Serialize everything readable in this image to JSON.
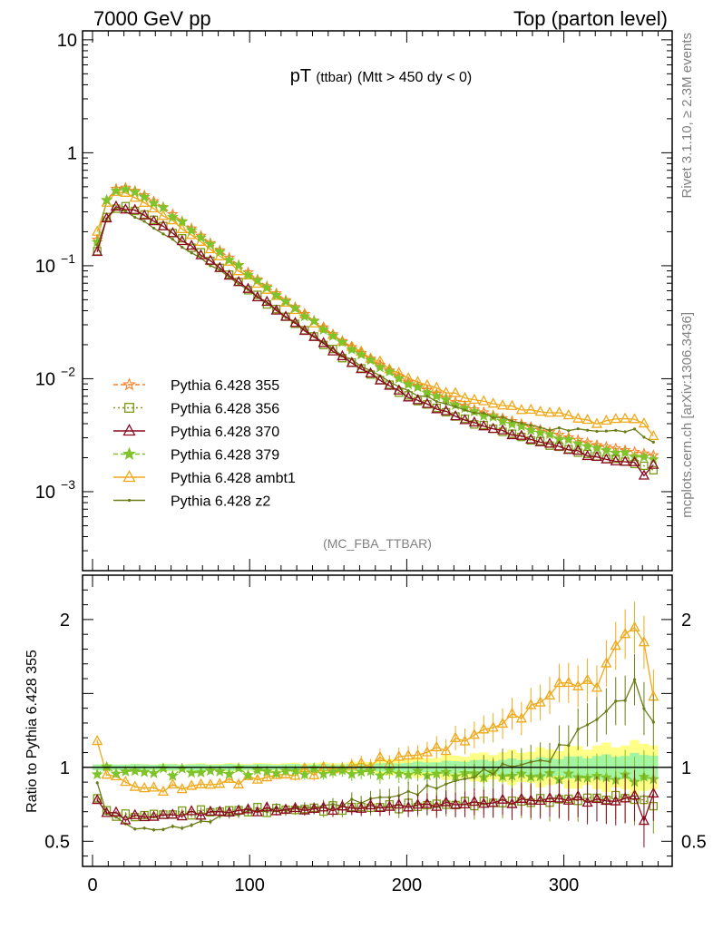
{
  "header": {
    "left": "7000 GeV pp",
    "right": "Top (parton level)"
  },
  "plot_title": {
    "main": "pT",
    "sub": "(ttbar)",
    "cut": "(Mtt > 450 dy < 0)"
  },
  "side": {
    "rivet": "Rivet 3.1.10, ≥ 2.3M events",
    "mcplots": "mcplots.cern.ch [arXiv:1306.3436]"
  },
  "analysis_label": "(MC_FBA_TTBAR)",
  "ratio_ylabel": "Ratio to Pythia 6.428 355",
  "colors": {
    "p355": "#ff7f24",
    "p356": "#7a9a14",
    "p370": "#8b0a1e",
    "p379": "#7ec42a",
    "ambt1": "#f0a818",
    "z2": "#6b7d17",
    "band_green": "#a3f5a3",
    "band_yellow": "#ffff88"
  },
  "chart_data": {
    "type": "line",
    "x_bins": 60,
    "x_range": [
      0,
      360
    ],
    "main": {
      "yscale": "log",
      "ylim": [
        0.0002,
        12
      ],
      "y_ticks": [
        {
          "label": "10",
          "value": 10
        },
        {
          "label": "1",
          "value": 1
        },
        {
          "label": "10",
          "exp": "−1",
          "value": 0.1
        },
        {
          "label": "10",
          "exp": "−2",
          "value": 0.01
        },
        {
          "label": "10",
          "exp": "−3",
          "value": 0.001
        }
      ]
    },
    "ratio": {
      "ylim": [
        0.33,
        2.3
      ],
      "y_ticks": [
        {
          "label": "2",
          "value": 2
        },
        {
          "label": "1",
          "value": 1
        },
        {
          "label": "0.5",
          "value": 0.5
        }
      ]
    },
    "x_ticks": [
      "0",
      "100",
      "200",
      "300"
    ],
    "legend": {
      "placement": "lower-left",
      "entries": [
        {
          "key": "p355",
          "label": "Pythia 6.428 355"
        },
        {
          "key": "p356",
          "label": "Pythia 6.428 356"
        },
        {
          "key": "p370",
          "label": "Pythia 6.428 370"
        },
        {
          "key": "p379",
          "label": "Pythia 6.428 379"
        },
        {
          "key": "ambt1",
          "label": "Pythia 6.428 ambt1"
        },
        {
          "key": "z2",
          "label": "Pythia 6.428 z2"
        }
      ]
    },
    "reference": {
      "key": "p355",
      "anchors_x": [
        3,
        9,
        15,
        21,
        27,
        33,
        45,
        60,
        80,
        100,
        130,
        160,
        200,
        240,
        280,
        320,
        357
      ],
      "anchors_y": [
        0.17,
        0.38,
        0.48,
        0.49,
        0.46,
        0.42,
        0.33,
        0.23,
        0.14,
        0.085,
        0.042,
        0.021,
        0.0095,
        0.0055,
        0.0037,
        0.0026,
        0.0021
      ]
    },
    "series": [
      {
        "key": "p355",
        "marker": "star-open",
        "dash": "5,3",
        "ratio_anchors_x": [
          0,
          360
        ],
        "ratio_anchors_y": [
          1.0,
          1.0
        ]
      },
      {
        "key": "p356",
        "marker": "square-open",
        "dash": "2,3",
        "ratio_anchors_x": [
          3,
          9,
          20,
          40,
          70,
          100,
          150,
          200,
          250,
          300,
          340,
          357
        ],
        "ratio_anchors_y": [
          0.79,
          0.7,
          0.67,
          0.68,
          0.7,
          0.71,
          0.72,
          0.74,
          0.76,
          0.78,
          0.8,
          0.75
        ]
      },
      {
        "key": "p370",
        "marker": "triangle-open",
        "dash": "",
        "ratio_anchors_x": [
          3,
          9,
          20,
          40,
          70,
          100,
          150,
          200,
          250,
          300,
          330,
          345,
          350,
          357
        ],
        "ratio_anchors_y": [
          0.78,
          0.7,
          0.66,
          0.67,
          0.69,
          0.71,
          0.72,
          0.74,
          0.76,
          0.79,
          0.77,
          0.8,
          0.63,
          0.8
        ]
      },
      {
        "key": "p379",
        "marker": "star-filled",
        "dash": "5,3",
        "ratio_anchors_x": [
          3,
          20,
          50,
          100,
          150,
          200,
          250,
          300,
          330,
          357
        ],
        "ratio_anchors_y": [
          0.98,
          0.97,
          0.97,
          0.97,
          0.97,
          0.96,
          0.95,
          0.94,
          0.93,
          0.92
        ]
      },
      {
        "key": "ambt1",
        "marker": "triangle-open",
        "dash": "",
        "ratio_anchors_x": [
          3,
          9,
          20,
          35,
          50,
          70,
          100,
          130,
          160,
          190,
          220,
          250,
          280,
          300,
          320,
          340,
          350,
          357
        ],
        "ratio_anchors_y": [
          1.15,
          0.97,
          0.9,
          0.85,
          0.86,
          0.88,
          0.92,
          0.96,
          1.0,
          1.05,
          1.12,
          1.25,
          1.4,
          1.58,
          1.55,
          1.95,
          1.9,
          1.5
        ]
      },
      {
        "key": "z2",
        "marker": "dot",
        "dash": "",
        "ratio_anchors_x": [
          3,
          9,
          20,
          30,
          40,
          60,
          80,
          100,
          150,
          200,
          230,
          260,
          290,
          310,
          330,
          345,
          357
        ],
        "ratio_anchors_y": [
          0.88,
          0.7,
          0.62,
          0.58,
          0.58,
          0.6,
          0.66,
          0.7,
          0.74,
          0.82,
          0.9,
          1.0,
          1.05,
          1.25,
          1.4,
          1.55,
          1.3
        ]
      }
    ],
    "band": {
      "green_half_anchors_x": [
        0,
        160,
        260,
        357
      ],
      "green_half_anchors_y": [
        0.02,
        0.02,
        0.05,
        0.09
      ],
      "yellow_half_anchors_x": [
        0,
        160,
        260,
        357
      ],
      "yellow_half_anchors_y": [
        0.02,
        0.03,
        0.1,
        0.17
      ]
    }
  }
}
